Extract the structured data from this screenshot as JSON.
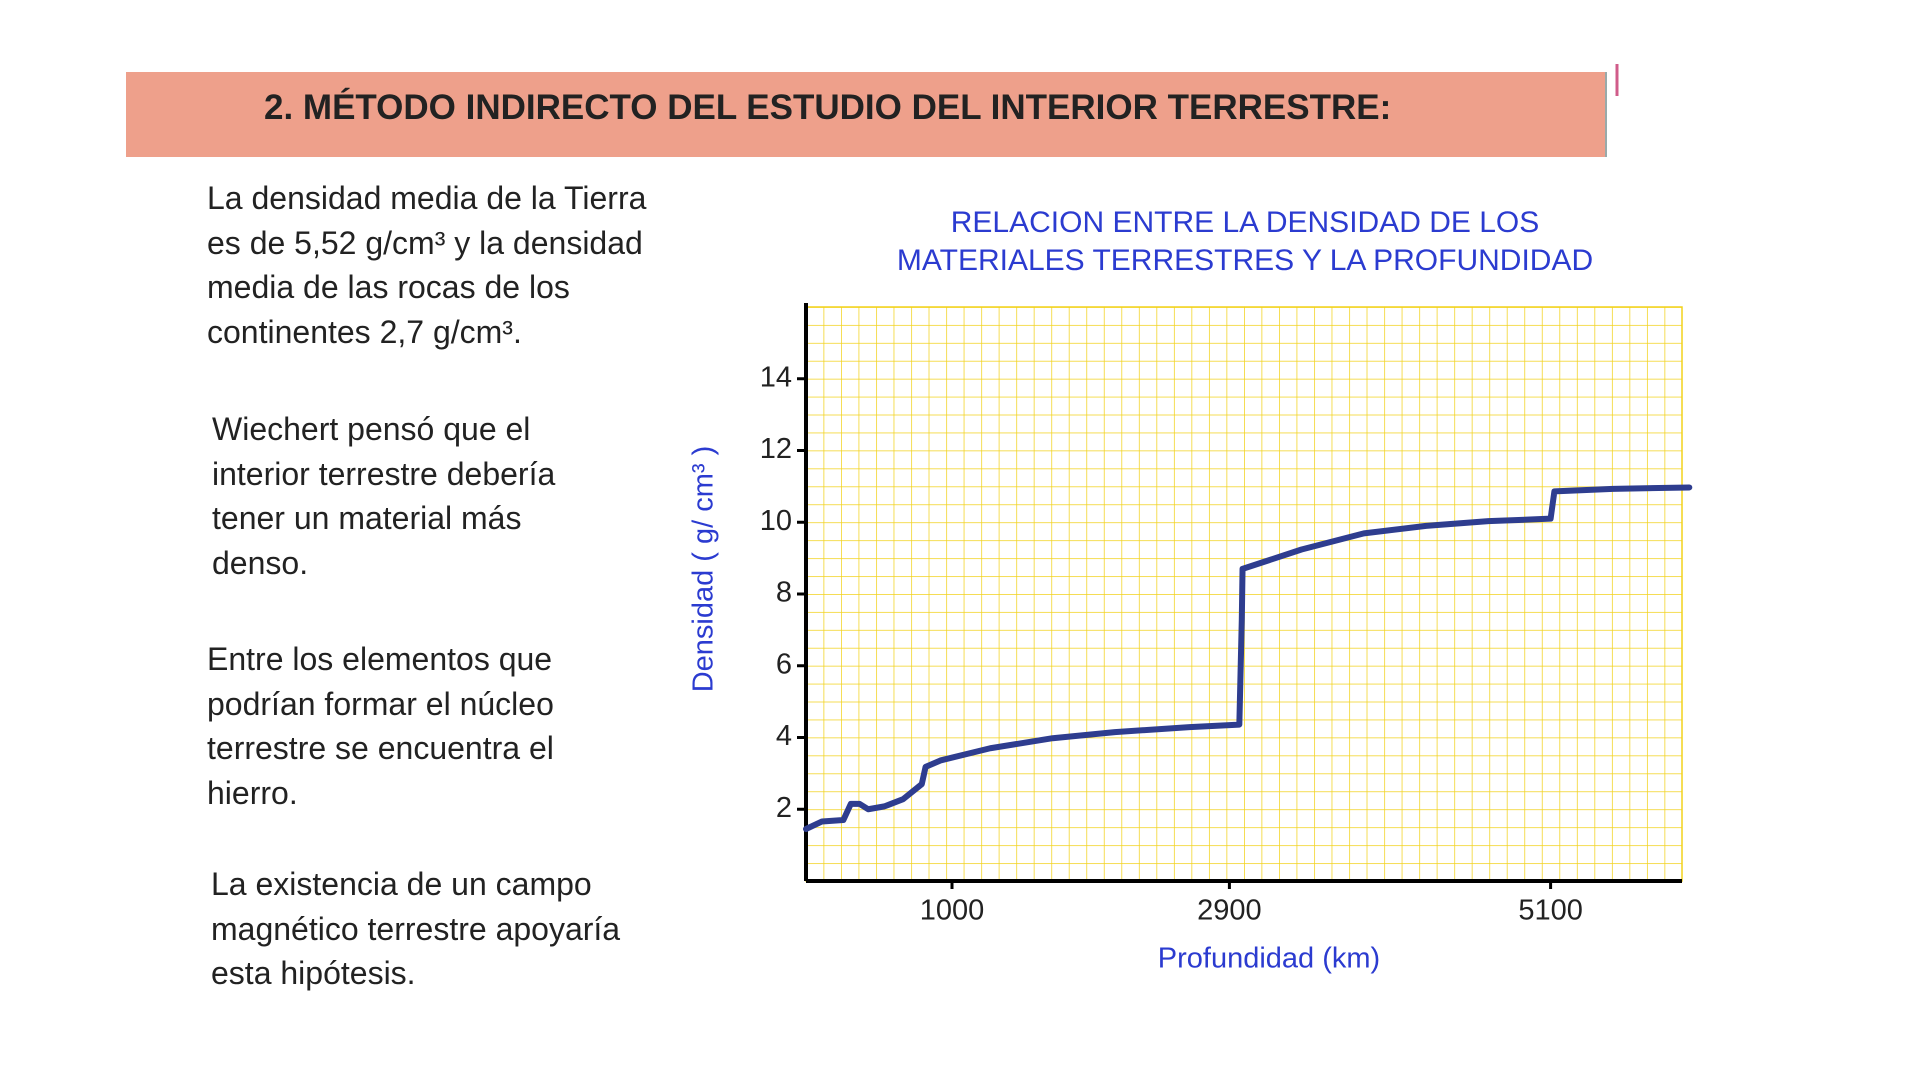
{
  "header": {
    "title": "2. MÉTODO INDIRECTO DEL ESTUDIO DEL INTERIOR TERRESTRE:"
  },
  "paragraphs": [
    {
      "lines": [
        "La densidad media de la Tierra",
        "es de 5,52 g/cm³ y la densidad",
        "media de las rocas de los",
        "continentes 2,7 g/cm³."
      ]
    },
    {
      "lines": [
        "Wiechert pensó que el",
        "interior terrestre debería",
        "tener un material más",
        "denso."
      ]
    },
    {
      "lines": [
        "Entre los elementos que",
        "podrían formar el núcleo",
        "terrestre se encuentra el",
        "hierro."
      ]
    },
    {
      "lines": [
        "La existencia de un campo",
        "magnético terrestre apoyaría",
        "esta hipótesis."
      ]
    }
  ],
  "chart_data": {
    "type": "line",
    "title": [
      "RELACION ENTRE LA DENSIDAD DE LOS",
      "MATERIALES TERRESTRES Y LA PROFUNDIDAD"
    ],
    "x_label": "Profundidad (km)",
    "y_label": "Densidad ( g/ cm³ )",
    "x": [
      0,
      110,
      256,
      307,
      367,
      426,
      537,
      665,
      793,
      819,
      921,
      1262,
      1689,
      2115,
      2627,
      2968,
      2985,
      2990,
      3394,
      3821,
      4247,
      4674,
      5100,
      5126,
      5527,
      6050
    ],
    "series": [
      {
        "color": "#2e3d8f",
        "values": [
          1.45,
          1.66,
          1.7,
          2.15,
          2.15,
          2.0,
          2.08,
          2.28,
          2.7,
          3.18,
          3.36,
          3.7,
          3.98,
          4.15,
          4.29,
          4.36,
          7.3,
          8.7,
          9.24,
          9.69,
          9.9,
          10.03,
          10.1,
          10.86,
          10.93,
          10.97
        ]
      }
    ],
    "xlim": [
      0,
      6000
    ],
    "ylim": [
      0,
      16
    ],
    "xticks": [
      1000,
      2900,
      5100
    ],
    "yticks": [
      2,
      4,
      6,
      8,
      10,
      12,
      14
    ],
    "grid": true,
    "grid_color": "#f2d21c"
  }
}
